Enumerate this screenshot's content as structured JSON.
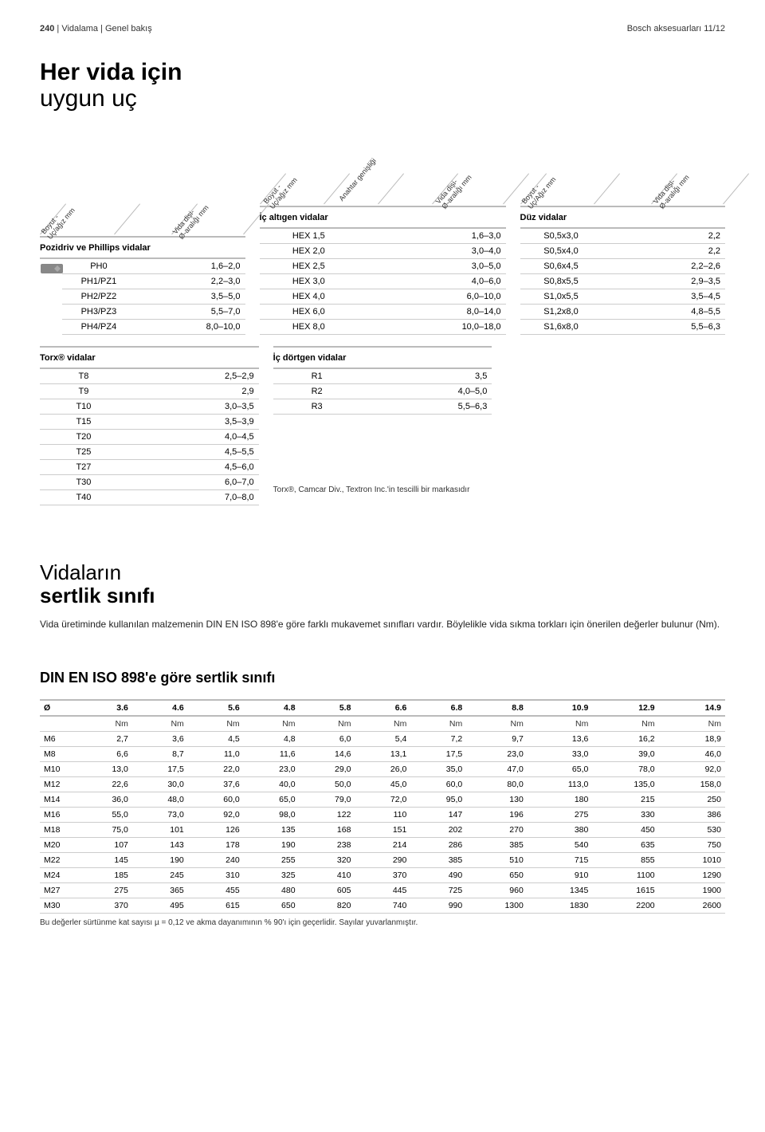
{
  "header": {
    "left_prefix": "240",
    "left_section": "Vidalama",
    "left_sub": "Genel bakış",
    "right": "Bosch aksesuarları 11/12"
  },
  "title": {
    "line1": "Her vida için",
    "line2": "uygun uç"
  },
  "diag_labels": {
    "col1_a": "Boyut -",
    "col1_b": "Uç/ağız mm",
    "col1_c": "Vida dişi-",
    "col1_d": "Ø-aralığı mm",
    "col2_a": "Boyut -",
    "col2_b": "Uç/ağız mm",
    "col2_c": "Anahtar genişliği",
    "col2_d": "Vida dişi-",
    "col2_e": "Ø-aralığı mm",
    "col3_a": "Boyut -",
    "col3_b": "Uç/Ağız mm",
    "col3_c": "Vida dişi-",
    "col3_d": "Ø-aralığı mm"
  },
  "row1": {
    "col1": {
      "label": "Pozidriv ve Phillips vidalar",
      "rows": [
        [
          "PH0",
          "1,6–2,0"
        ],
        [
          "PH1/PZ1",
          "2,2–3,0"
        ],
        [
          "PH2/PZ2",
          "3,5–5,0"
        ],
        [
          "PH3/PZ3",
          "5,5–7,0"
        ],
        [
          "PH4/PZ4",
          "8,0–10,0"
        ]
      ]
    },
    "col2": {
      "label": "İç altıgen vidalar",
      "rows": [
        [
          "HEX 1,5",
          "1,6–3,0"
        ],
        [
          "HEX 2,0",
          "3,0–4,0"
        ],
        [
          "HEX 2,5",
          "3,0–5,0"
        ],
        [
          "HEX 3,0",
          "4,0–6,0"
        ],
        [
          "HEX 4,0",
          "6,0–10,0"
        ],
        [
          "HEX 6,0",
          "8,0–14,0"
        ],
        [
          "HEX 8,0",
          "10,0–18,0"
        ]
      ]
    },
    "col3": {
      "label": "Düz vidalar",
      "rows": [
        [
          "S0,5x3,0",
          "2,2"
        ],
        [
          "S0,5x4,0",
          "2,2"
        ],
        [
          "S0,6x4,5",
          "2,2–2,6"
        ],
        [
          "S0,8x5,5",
          "2,9–3,5"
        ],
        [
          "S1,0x5,5",
          "3,5–4,5"
        ],
        [
          "S1,2x8,0",
          "4,8–5,5"
        ],
        [
          "S1,6x8,0",
          "5,5–6,3"
        ]
      ]
    }
  },
  "row2": {
    "col1": {
      "label": "Torx® vidalar",
      "rows": [
        [
          "T8",
          "2,5–2,9"
        ],
        [
          "T9",
          "2,9"
        ],
        [
          "T10",
          "3,0–3,5"
        ],
        [
          "T15",
          "3,5–3,9"
        ],
        [
          "T20",
          "4,0–4,5"
        ],
        [
          "T25",
          "4,5–5,5"
        ],
        [
          "T27",
          "4,5–6,0"
        ],
        [
          "T30",
          "6,0–7,0"
        ],
        [
          "T40",
          "7,0–8,0"
        ]
      ]
    },
    "col2": {
      "label": "İç dörtgen vidalar",
      "rows": [
        [
          "R1",
          "3,5"
        ],
        [
          "R2",
          "4,0–5,0"
        ],
        [
          "R3",
          "5,5–6,3"
        ]
      ],
      "note": "Torx®, Camcar Div., Textron Inc.'in tescilli bir markasıdır"
    }
  },
  "section2": {
    "title1": "Vidaların",
    "title2": "sertlik sınıfı",
    "para": "Vida üretiminde kullanılan malzemenin DIN EN ISO 898'e göre farklı mukavemet sınıfları vardır. Böylelikle vida sıkma torkları için önerilen değerler bulunur (Nm)."
  },
  "din": {
    "title": "DIN EN ISO 898'e göre sertlik sınıfı",
    "header_first": "Ø",
    "headers": [
      "3.6",
      "4.6",
      "5.6",
      "4.8",
      "5.8",
      "6.6",
      "6.8",
      "8.8",
      "10.9",
      "12.9",
      "14.9"
    ],
    "unit": "Nm",
    "rows": [
      [
        "M6",
        "2,7",
        "3,6",
        "4,5",
        "4,8",
        "6,0",
        "5,4",
        "7,2",
        "9,7",
        "13,6",
        "16,2",
        "18,9"
      ],
      [
        "M8",
        "6,6",
        "8,7",
        "11,0",
        "11,6",
        "14,6",
        "13,1",
        "17,5",
        "23,0",
        "33,0",
        "39,0",
        "46,0"
      ],
      [
        "M10",
        "13,0",
        "17,5",
        "22,0",
        "23,0",
        "29,0",
        "26,0",
        "35,0",
        "47,0",
        "65,0",
        "78,0",
        "92,0"
      ],
      [
        "M12",
        "22,6",
        "30,0",
        "37,6",
        "40,0",
        "50,0",
        "45,0",
        "60,0",
        "80,0",
        "113,0",
        "135,0",
        "158,0"
      ],
      [
        "M14",
        "36,0",
        "48,0",
        "60,0",
        "65,0",
        "79,0",
        "72,0",
        "95,0",
        "130",
        "180",
        "215",
        "250"
      ],
      [
        "M16",
        "55,0",
        "73,0",
        "92,0",
        "98,0",
        "122",
        "110",
        "147",
        "196",
        "275",
        "330",
        "386"
      ],
      [
        "M18",
        "75,0",
        "101",
        "126",
        "135",
        "168",
        "151",
        "202",
        "270",
        "380",
        "450",
        "530"
      ],
      [
        "M20",
        "107",
        "143",
        "178",
        "190",
        "238",
        "214",
        "286",
        "385",
        "540",
        "635",
        "750"
      ],
      [
        "M22",
        "145",
        "190",
        "240",
        "255",
        "320",
        "290",
        "385",
        "510",
        "715",
        "855",
        "1010"
      ],
      [
        "M24",
        "185",
        "245",
        "310",
        "325",
        "410",
        "370",
        "490",
        "650",
        "910",
        "1100",
        "1290"
      ],
      [
        "M27",
        "275",
        "365",
        "455",
        "480",
        "605",
        "445",
        "725",
        "960",
        "1345",
        "1615",
        "1900"
      ],
      [
        "M30",
        "370",
        "495",
        "615",
        "650",
        "820",
        "740",
        "990",
        "1300",
        "1830",
        "2200",
        "2600"
      ]
    ],
    "footnote": "Bu değerler sürtünme kat sayısı µ = 0,12 ve akma dayanımının % 90'ı için geçerlidir. Sayılar yuvarlanmıştır."
  },
  "style": {
    "rule_color": "#bbbbbb",
    "row_border": "#cccccc",
    "text": "#000000",
    "bg": "#ffffff"
  }
}
